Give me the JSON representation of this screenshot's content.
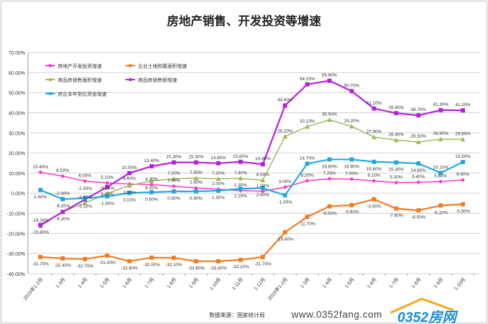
{
  "chart_data": {
    "type": "line",
    "title": "房地产销售、开发投资等增速",
    "categories": [
      "2015年1-2月",
      "1-3月",
      "1-4月",
      "1-5月",
      "1-6月",
      "1-7月",
      "1-8月",
      "1-9月",
      "1-10月",
      "1-11月",
      "1-12月",
      "2016年1-2月",
      "1-3月",
      "1-4月",
      "1-5月",
      "1-6月",
      "1-7月",
      "1-8月",
      "1-9月",
      "1-10月"
    ],
    "ylim": [
      -40,
      70
    ],
    "yticks": [
      "70.00%",
      "60.00%",
      "50.00%",
      "40.00%",
      "30.00%",
      "20.00%",
      "10.00%",
      "0.00%",
      "-10.00%",
      "-20.00%",
      "-30.00%",
      "-40.00%"
    ],
    "grid": true,
    "legend_position": "top-left",
    "series": [
      {
        "name": "房地产开发投资增速",
        "color": "#ff33cc",
        "marker": "diamond",
        "values": [
          10.4,
          8.5,
          6.0,
          5.1,
          4.6,
          4.3,
          3.5,
          2.6,
          2.0,
          1.3,
          1.0,
          3.0,
          6.2,
          7.2,
          7.0,
          6.1,
          5.3,
          5.4,
          5.8,
          6.6
        ]
      },
      {
        "name": "企业土地购置面积增速",
        "color": "#f47a20",
        "marker": "square",
        "values": [
          -31.7,
          -32.4,
          -32.7,
          -31.0,
          -33.8,
          -32.0,
          -32.1,
          -33.8,
          -33.8,
          -33.1,
          -31.7,
          -19.4,
          -11.7,
          -6.5,
          -5.9,
          -3.0,
          -7.6,
          -8.5,
          -6.1,
          -5.5
        ]
      },
      {
        "name": "商品房销售面积增速",
        "color": "#9bbb59",
        "marker": "triangle",
        "values": [
          -16.3,
          -9.2,
          -4.8,
          -0.2,
          3.9,
          6.1,
          7.2,
          7.5,
          7.2,
          7.4,
          6.5,
          28.2,
          33.1,
          36.5,
          33.2,
          27.9,
          26.4,
          25.5,
          26.9,
          26.8
        ]
      },
      {
        "name": "商品房销售额增速",
        "color": "#b31ee0",
        "marker": "square",
        "values": [
          -15.8,
          -9.3,
          -3.1,
          3.1,
          10.0,
          13.4,
          15.3,
          15.3,
          14.9,
          15.6,
          14.4,
          43.6,
          54.1,
          55.9,
          50.7,
          42.1,
          39.8,
          38.7,
          41.3,
          41.2
        ]
      },
      {
        "name": "房企本年到位资金增速",
        "color": "#1fa8e0",
        "marker": "square",
        "values": [
          1.6,
          -2.9,
          -2.5,
          -1.6,
          0.1,
          0.5,
          0.9,
          0.9,
          1.3,
          2.2,
          2.6,
          -1.0,
          14.7,
          16.8,
          16.8,
          15.6,
          15.3,
          14.8,
          10.1,
          15.5
        ]
      }
    ]
  },
  "source": "数据来源：国家统计局",
  "watermark": {
    "name": "0352房网",
    "url": "www.0352fang.com"
  }
}
